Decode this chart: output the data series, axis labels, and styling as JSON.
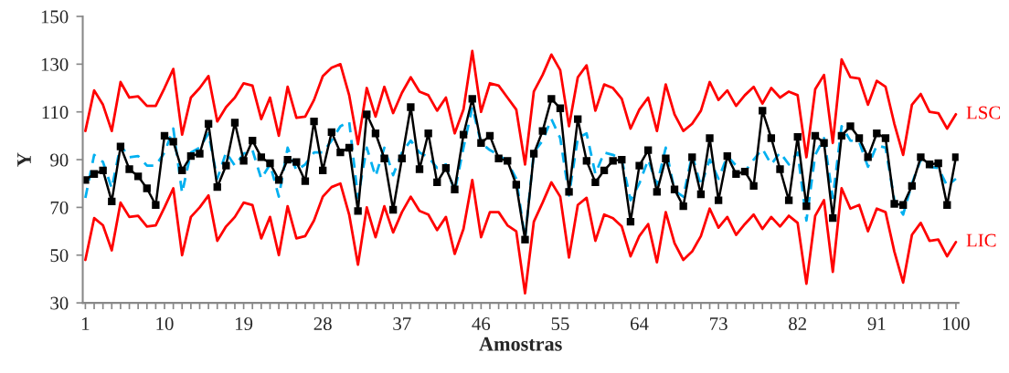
{
  "chart_data": {
    "type": "line",
    "xlabel": "Amostras",
    "ylabel": "Y",
    "x": [
      1,
      2,
      3,
      4,
      5,
      6,
      7,
      8,
      9,
      10,
      11,
      12,
      13,
      14,
      15,
      16,
      17,
      18,
      19,
      20,
      21,
      22,
      23,
      24,
      25,
      26,
      27,
      28,
      29,
      30,
      31,
      32,
      33,
      34,
      35,
      36,
      37,
      38,
      39,
      40,
      41,
      42,
      43,
      44,
      45,
      46,
      47,
      48,
      49,
      50,
      51,
      52,
      53,
      54,
      55,
      56,
      57,
      58,
      59,
      60,
      61,
      62,
      63,
      64,
      65,
      66,
      67,
      68,
      69,
      70,
      71,
      72,
      73,
      74,
      75,
      76,
      77,
      78,
      79,
      80,
      81,
      82,
      83,
      84,
      85,
      86,
      87,
      88,
      89,
      90,
      91,
      92,
      93,
      94,
      95,
      96,
      97,
      98,
      99,
      100
    ],
    "series": [
      {
        "name": "LSC",
        "color": "#ff0000",
        "line_style": "solid",
        "marker": "none",
        "values": [
          102,
          119,
          113,
          102,
          122.5,
          116,
          116.5,
          112.5,
          112.5,
          120,
          128,
          100.5,
          116,
          120,
          125,
          106,
          112,
          116,
          122,
          121,
          107,
          116,
          100,
          120.5,
          107.5,
          108,
          115,
          125,
          128.5,
          130,
          117,
          96.5,
          120,
          108,
          120.5,
          109.5,
          118,
          124.5,
          118.5,
          117,
          110.5,
          116,
          101,
          111,
          135.5,
          110,
          122,
          121,
          116,
          111,
          88,
          118.5,
          125.5,
          134,
          127.5,
          104,
          124.5,
          129.5,
          110.5,
          121.5,
          120,
          115.5,
          103,
          111,
          116,
          102,
          121.5,
          109,
          102,
          105,
          110.5,
          122.5,
          115,
          119,
          112.5,
          117,
          120.5,
          113.5,
          120,
          116,
          118.5,
          117,
          91,
          119.5,
          125.5,
          97,
          132,
          124.5,
          124,
          113,
          123,
          120.5,
          105,
          92,
          113,
          117.5,
          110,
          109.5,
          103,
          109
        ]
      },
      {
        "name": "LIC",
        "color": "#ff0000",
        "line_style": "solid",
        "marker": "none",
        "values": [
          48,
          65.5,
          62.5,
          52,
          72,
          66,
          66.5,
          62,
          62.5,
          70,
          78,
          50,
          66,
          70,
          75,
          56,
          62,
          66,
          72,
          71,
          57,
          66,
          50,
          70.5,
          57,
          58,
          64.5,
          74.5,
          78.5,
          80,
          67,
          46,
          70,
          57.5,
          70.5,
          59.5,
          68,
          74.5,
          68.5,
          67,
          60.5,
          66,
          50.5,
          61,
          81.5,
          57.5,
          68,
          68,
          62.5,
          60,
          34,
          64,
          72,
          80.5,
          74.5,
          49,
          71,
          74,
          56,
          67,
          65.5,
          62,
          49.5,
          58,
          63,
          47,
          68,
          55,
          48,
          51.5,
          58,
          69.5,
          61.5,
          66,
          58.5,
          63,
          67,
          61,
          66,
          62,
          66.5,
          63.5,
          38,
          66.5,
          73,
          43,
          78,
          69.5,
          71,
          60,
          69.5,
          68,
          51.5,
          38.5,
          58.5,
          63.5,
          56,
          56.5,
          49.5,
          55.5
        ]
      },
      {
        "color": "#00b0f0",
        "line_style": "dashed",
        "marker": "none",
        "values": [
          74,
          92,
          89,
          78,
          96,
          91,
          91.5,
          87.5,
          87.5,
          93,
          103,
          76,
          93,
          95,
          101,
          82,
          93,
          87.5,
          92.5,
          94,
          82,
          88,
          74.5,
          95,
          85.5,
          88,
          93,
          93,
          98,
          104,
          106,
          74,
          95,
          83,
          95,
          83.5,
          93,
          98,
          93,
          91,
          86.5,
          88,
          76.5,
          95,
          112,
          97,
          94,
          92,
          89,
          82,
          57,
          93,
          98,
          107,
          99,
          75,
          99,
          101,
          84,
          93,
          92,
          90,
          73,
          80,
          90,
          79.5,
          95,
          77,
          74.5,
          92,
          79,
          90,
          82,
          91.5,
          87.5,
          85,
          90,
          94.5,
          88,
          93,
          88,
          93,
          64.5,
          92,
          99,
          74,
          104,
          98,
          97.5,
          87,
          96,
          95,
          73,
          67,
          80,
          90,
          87,
          86.5,
          79,
          82
        ]
      },
      {
        "color": "#000000",
        "line_style": "solid",
        "marker": "square",
        "values": [
          81.5,
          84,
          85.5,
          72.5,
          95.5,
          86,
          83,
          78,
          71,
          100,
          97.5,
          85.5,
          91.5,
          92.5,
          105,
          78.5,
          87.5,
          105.5,
          89.5,
          98,
          91,
          88.5,
          81.5,
          90,
          89,
          81,
          106,
          85.5,
          101.5,
          93,
          95,
          68.5,
          109,
          101,
          90.5,
          69,
          90.5,
          112,
          86,
          101,
          80.5,
          86.5,
          77.5,
          100.5,
          115.5,
          97,
          100,
          90.5,
          89.5,
          79.5,
          56.5,
          92.5,
          102,
          115.5,
          111.5,
          76.5,
          107,
          89.5,
          80.5,
          85.5,
          89.5,
          90,
          64,
          87.5,
          94,
          76.5,
          90.5,
          77.5,
          70.5,
          91,
          75.5,
          99,
          73,
          91.5,
          84,
          85,
          79,
          110.5,
          99,
          86,
          73,
          99.5,
          70.5,
          100,
          97,
          65.5,
          100,
          104,
          99,
          91,
          101,
          99,
          71.5,
          71,
          79,
          91,
          88,
          88.5,
          71,
          91
        ]
      }
    ],
    "xlim": [
      0.7,
      100.3
    ],
    "xticks": [
      1,
      {
        "value": 2,
        "label": null
      },
      {
        "value": 3,
        "label": null
      },
      {
        "value": 4,
        "label": null
      },
      {
        "value": 5,
        "label": null
      },
      {
        "value": 6,
        "label": null
      },
      {
        "value": 7,
        "label": null
      },
      {
        "value": 8,
        "label": null
      },
      {
        "value": 9,
        "label": null
      },
      10,
      {
        "value": 11,
        "label": null
      },
      {
        "value": 12,
        "label": null
      },
      {
        "value": 13,
        "label": null
      },
      {
        "value": 14,
        "label": null
      },
      {
        "value": 15,
        "label": null
      },
      {
        "value": 16,
        "label": null
      },
      {
        "value": 17,
        "label": null
      },
      {
        "value": 18,
        "label": null
      },
      19,
      {
        "value": 20,
        "label": null
      },
      {
        "value": 21,
        "label": null
      },
      {
        "value": 22,
        "label": null
      },
      {
        "value": 23,
        "label": null
      },
      {
        "value": 24,
        "label": null
      },
      {
        "value": 25,
        "label": null
      },
      {
        "value": 26,
        "label": null
      },
      {
        "value": 27,
        "label": null
      },
      28,
      {
        "value": 29,
        "label": null
      },
      {
        "value": 30,
        "label": null
      },
      {
        "value": 31,
        "label": null
      },
      {
        "value": 32,
        "label": null
      },
      {
        "value": 33,
        "label": null
      },
      {
        "value": 34,
        "label": null
      },
      {
        "value": 35,
        "label": null
      },
      {
        "value": 36,
        "label": null
      },
      37,
      {
        "value": 38,
        "label": null
      },
      {
        "value": 39,
        "label": null
      },
      {
        "value": 40,
        "label": null
      },
      {
        "value": 41,
        "label": null
      },
      {
        "value": 42,
        "label": null
      },
      {
        "value": 43,
        "label": null
      },
      {
        "value": 44,
        "label": null
      },
      {
        "value": 45,
        "label": null
      },
      46,
      {
        "value": 47,
        "label": null
      },
      {
        "value": 48,
        "label": null
      },
      {
        "value": 49,
        "label": null
      },
      {
        "value": 50,
        "label": null
      },
      {
        "value": 51,
        "label": null
      },
      {
        "value": 52,
        "label": null
      },
      {
        "value": 53,
        "label": null
      },
      {
        "value": 54,
        "label": null
      },
      55,
      {
        "value": 56,
        "label": null
      },
      {
        "value": 57,
        "label": null
      },
      {
        "value": 58,
        "label": null
      },
      {
        "value": 59,
        "label": null
      },
      {
        "value": 60,
        "label": null
      },
      {
        "value": 61,
        "label": null
      },
      {
        "value": 62,
        "label": null
      },
      {
        "value": 63,
        "label": null
      },
      64,
      {
        "value": 65,
        "label": null
      },
      {
        "value": 66,
        "label": null
      },
      {
        "value": 67,
        "label": null
      },
      {
        "value": 68,
        "label": null
      },
      {
        "value": 69,
        "label": null
      },
      {
        "value": 70,
        "label": null
      },
      {
        "value": 71,
        "label": null
      },
      {
        "value": 72,
        "label": null
      },
      73,
      {
        "value": 74,
        "label": null
      },
      {
        "value": 75,
        "label": null
      },
      {
        "value": 76,
        "label": null
      },
      {
        "value": 77,
        "label": null
      },
      {
        "value": 78,
        "label": null
      },
      {
        "value": 79,
        "label": null
      },
      {
        "value": 80,
        "label": null
      },
      {
        "value": 81,
        "label": null
      },
      82,
      {
        "value": 83,
        "label": null
      },
      {
        "value": 84,
        "label": null
      },
      {
        "value": 85,
        "label": null
      },
      {
        "value": 86,
        "label": null
      },
      {
        "value": 87,
        "label": null
      },
      {
        "value": 88,
        "label": null
      },
      {
        "value": 89,
        "label": null
      },
      {
        "value": 90,
        "label": null
      },
      91,
      {
        "value": 92,
        "label": null
      },
      {
        "value": 93,
        "label": null
      },
      {
        "value": 94,
        "label": null
      },
      {
        "value": 95,
        "label": null
      },
      {
        "value": 96,
        "label": null
      },
      {
        "value": 97,
        "label": null
      },
      {
        "value": 98,
        "label": null
      },
      {
        "value": 99,
        "label": null
      },
      100
    ],
    "ylim": [
      30,
      150
    ],
    "yticks": [
      30,
      50,
      70,
      90,
      110,
      130,
      150
    ],
    "grid": false,
    "legend": false
  }
}
